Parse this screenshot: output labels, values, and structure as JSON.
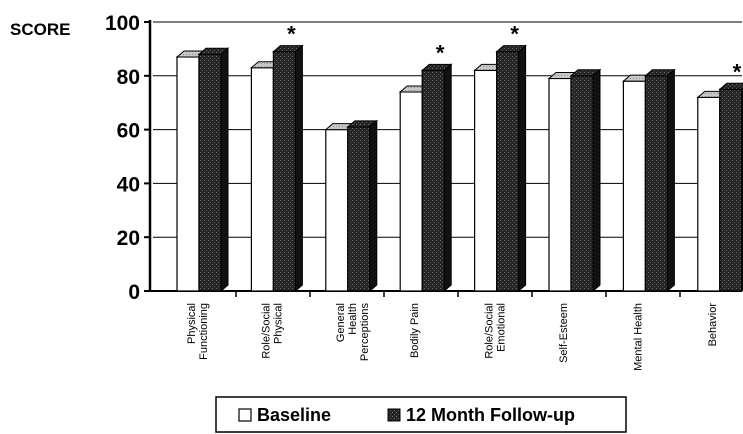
{
  "chart_data": {
    "type": "bar",
    "ylabel": "SCORE",
    "ylim": [
      0,
      100
    ],
    "yticks": [
      "0",
      "20",
      "40",
      "60",
      "80",
      "100"
    ],
    "categories": [
      [
        "Physical",
        "Functioning"
      ],
      [
        "Role/Social",
        "Physical"
      ],
      [
        "General",
        "Health",
        "Perceptions"
      ],
      [
        "Bodily Pain"
      ],
      [
        "Role/Social",
        "Emotional"
      ],
      [
        "Self-Esteem"
      ],
      [
        "Mental Health"
      ],
      [
        "Behavior"
      ]
    ],
    "series": [
      {
        "name": "Baseline",
        "values": [
          87,
          83,
          60,
          74,
          82,
          79,
          78,
          72
        ]
      },
      {
        "name": "12 Month Follow-up",
        "values": [
          88,
          89,
          61,
          82,
          89,
          80,
          80,
          75
        ]
      }
    ],
    "significance_marker": "*",
    "significant": [
      false,
      true,
      false,
      true,
      true,
      false,
      false,
      true
    ],
    "grid": true,
    "legend_position": "bottom"
  }
}
